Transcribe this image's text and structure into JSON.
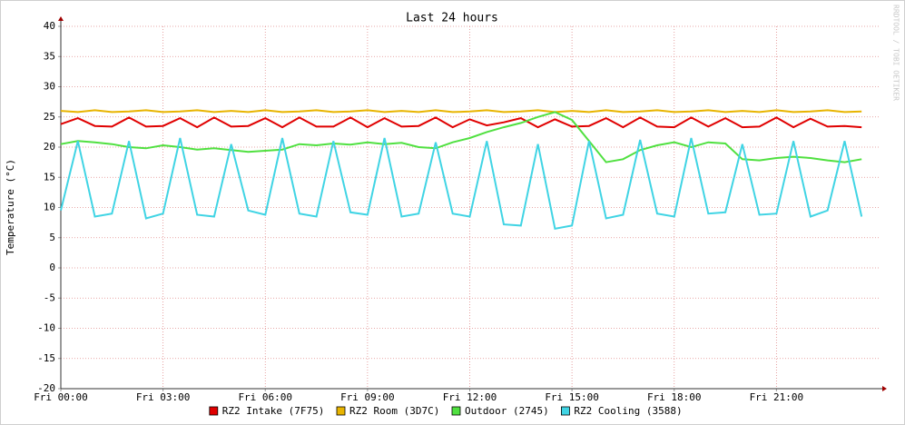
{
  "chart_data": {
    "type": "line",
    "title": "Last 24 hours",
    "y_label": "Temperature (°C)",
    "watermark": "RRDTOOL / TOBI OETIKER",
    "xlim": [
      0,
      24
    ],
    "ylim": [
      -20,
      40
    ],
    "yticks": [
      -20,
      -15,
      -10,
      -5,
      0,
      5,
      10,
      15,
      20,
      25,
      30,
      35,
      40
    ],
    "xticks": [
      {
        "value": 0,
        "label": "Fri 00:00"
      },
      {
        "value": 3,
        "label": "Fri 03:00"
      },
      {
        "value": 6,
        "label": "Fri 06:00"
      },
      {
        "value": 9,
        "label": "Fri 09:00"
      },
      {
        "value": 12,
        "label": "Fri 12:00"
      },
      {
        "value": 15,
        "label": "Fri 15:00"
      },
      {
        "value": 18,
        "label": "Fri 18:00"
      },
      {
        "value": 21,
        "label": "Fri 21:00"
      }
    ],
    "grid": true,
    "x": [
      0,
      0.5,
      1,
      1.5,
      2,
      2.5,
      3,
      3.5,
      4,
      4.5,
      5,
      5.5,
      6,
      6.5,
      7,
      7.5,
      8,
      8.5,
      9,
      9.5,
      10,
      10.5,
      11,
      11.5,
      12,
      12.5,
      13,
      13.5,
      14,
      14.5,
      15,
      15.5,
      16,
      16.5,
      17,
      17.5,
      18,
      18.5,
      19,
      19.5,
      20,
      20.5,
      21,
      21.5,
      22,
      22.5,
      23,
      23.5
    ],
    "series": [
      {
        "name": "RZ2 Intake (7F75)",
        "color": "#e00000",
        "values": [
          23.8,
          24.8,
          23.5,
          23.4,
          24.9,
          23.4,
          23.5,
          24.8,
          23.3,
          24.9,
          23.4,
          23.5,
          24.8,
          23.3,
          24.9,
          23.4,
          23.4,
          24.9,
          23.3,
          24.8,
          23.4,
          23.5,
          24.9,
          23.3,
          24.6,
          23.6,
          24.1,
          24.8,
          23.3,
          24.6,
          23.4,
          23.5,
          24.8,
          23.3,
          24.9,
          23.4,
          23.3,
          24.9,
          23.4,
          24.8,
          23.3,
          23.4,
          24.9,
          23.3,
          24.7,
          23.4,
          23.5,
          23.3
        ]
      },
      {
        "name": "RZ2 Room (3D7C)",
        "color": "#e8b400",
        "values": [
          26,
          25.8,
          26.1,
          25.8,
          25.9,
          26.1,
          25.8,
          25.9,
          26.1,
          25.8,
          26,
          25.8,
          26.1,
          25.8,
          25.9,
          26.1,
          25.8,
          25.9,
          26.1,
          25.8,
          26,
          25.8,
          26.1,
          25.8,
          25.9,
          26.1,
          25.8,
          25.9,
          26.1,
          25.8,
          26,
          25.8,
          26.1,
          25.8,
          25.9,
          26.1,
          25.8,
          25.9,
          26.1,
          25.8,
          26,
          25.8,
          26.1,
          25.8,
          25.9,
          26.1,
          25.8,
          25.9
        ]
      },
      {
        "name": "Outdoor (2745)",
        "color": "#50e040",
        "values": [
          20.5,
          21,
          20.8,
          20.5,
          20,
          19.8,
          20.3,
          20,
          19.6,
          19.8,
          19.5,
          19.2,
          19.4,
          19.6,
          20.5,
          20.3,
          20.6,
          20.4,
          20.8,
          20.5,
          20.7,
          20,
          19.8,
          20.8,
          21.5,
          22.5,
          23.3,
          24,
          25,
          25.8,
          24.5,
          21,
          17.5,
          18,
          19.5,
          20.3,
          20.8,
          20,
          20.8,
          20.6,
          18,
          17.8,
          18.2,
          18.4,
          18.2,
          17.8,
          17.5,
          18
        ]
      },
      {
        "name": "RZ2 Cooling (3588)",
        "color": "#40d4e4",
        "values": [
          9.5,
          21,
          8.5,
          9,
          21,
          8.2,
          9,
          21.5,
          8.8,
          8.5,
          20.5,
          9.5,
          8.8,
          21.5,
          9,
          8.5,
          21,
          9.2,
          8.8,
          21.5,
          8.5,
          9,
          20.8,
          9,
          8.5,
          21,
          7.2,
          7,
          20.5,
          6.5,
          7,
          21,
          8.2,
          8.8,
          21.2,
          9,
          8.5,
          21.5,
          9,
          9.2,
          20.5,
          8.8,
          9,
          21,
          8.5,
          9.5,
          21,
          8.5
        ]
      }
    ]
  }
}
